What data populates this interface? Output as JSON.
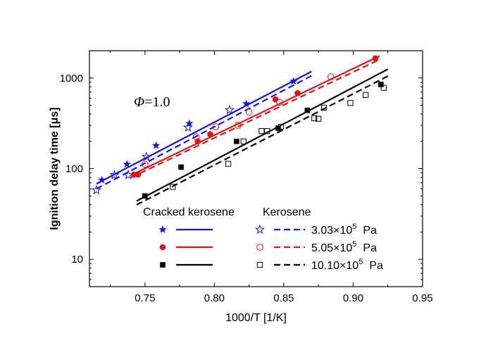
{
  "chart_data": {
    "type": "scatter",
    "xlabel": "1000/T [1/K]",
    "ylabel": "Ignition delay time [μs]",
    "xlim": [
      0.71,
      0.95
    ],
    "ylim": [
      5,
      2000
    ],
    "yscale": "log",
    "x_ticks": [
      0.75,
      0.8,
      0.85,
      0.9,
      0.95
    ],
    "x_tick_labels": [
      "0.75",
      "0.80",
      "0.85",
      "0.90",
      "0.95"
    ],
    "y_ticks": [
      10,
      100,
      1000
    ],
    "y_tick_labels": [
      "10",
      "100",
      "1000"
    ],
    "annotation": {
      "symbol": "Φ",
      "text": "=1.0"
    },
    "legend": {
      "header_cracked": "Cracked kerosene",
      "header_kerosene": "Kerosene",
      "pressure_labels": [
        "3.03×10",
        "5.05×10",
        "10.10×10"
      ],
      "exponent": "5",
      "unit": "Pa"
    },
    "series": [
      {
        "fuel": "cracked",
        "pressure_index": 0,
        "color": "#1414e0",
        "marker": "filled-star",
        "line": "solid",
        "x": [
          0.719,
          0.737,
          0.758,
          0.782,
          0.823,
          0.857
        ],
        "y": [
          75,
          112,
          180,
          315,
          520,
          920
        ],
        "fit": [
          [
            0.715,
            68
          ],
          [
            0.87,
            1180
          ]
        ]
      },
      {
        "fuel": "kerosene",
        "pressure_index": 0,
        "color": "#1414e0",
        "marker": "open-star",
        "line": "dashed",
        "x": [
          0.715,
          0.728,
          0.738,
          0.751,
          0.781,
          0.811
        ],
        "y": [
          58,
          85,
          85,
          135,
          285,
          445
        ],
        "fit": [
          [
            0.715,
            60
          ],
          [
            0.87,
            1060
          ]
        ]
      },
      {
        "fuel": "cracked",
        "pressure_index": 1,
        "color": "#e01414",
        "marker": "filled-circle",
        "line": "solid",
        "x": [
          0.742,
          0.745,
          0.788,
          0.797,
          0.844,
          0.86,
          0.916
        ],
        "y": [
          86,
          86,
          200,
          240,
          580,
          680,
          1650
        ],
        "fit": [
          [
            0.74,
            85
          ],
          [
            0.919,
            1750
          ]
        ]
      },
      {
        "fuel": "kerosene",
        "pressure_index": 1,
        "color": "#e01414",
        "marker": "open-circle",
        "line": "dashed",
        "x": [
          0.75,
          0.787,
          0.801,
          0.817,
          0.825,
          0.847,
          0.884
        ],
        "y": [
          112,
          225,
          290,
          300,
          420,
          540,
          1030
        ],
        "fit": [
          [
            0.74,
            80
          ],
          [
            0.919,
            1600
          ]
        ]
      },
      {
        "fuel": "cracked",
        "pressure_index": 2,
        "color": "#000000",
        "marker": "filled-square",
        "line": "solid",
        "x": [
          0.75,
          0.776,
          0.816,
          0.846,
          0.867,
          0.92
        ],
        "y": [
          50,
          104,
          200,
          280,
          440,
          850
        ],
        "fit": [
          [
            0.744,
            44
          ],
          [
            0.925,
            1250
          ]
        ]
      },
      {
        "fuel": "kerosene",
        "pressure_index": 2,
        "color": "#000000",
        "marker": "open-square",
        "line": "dashed",
        "x": [
          0.77,
          0.81,
          0.821,
          0.834,
          0.838,
          0.848,
          0.872,
          0.875,
          0.879,
          0.898,
          0.909,
          0.922
        ],
        "y": [
          63,
          113,
          200,
          260,
          260,
          290,
          360,
          355,
          470,
          530,
          650,
          780
        ],
        "fit": [
          [
            0.744,
            40
          ],
          [
            0.925,
            1050
          ]
        ]
      }
    ]
  }
}
